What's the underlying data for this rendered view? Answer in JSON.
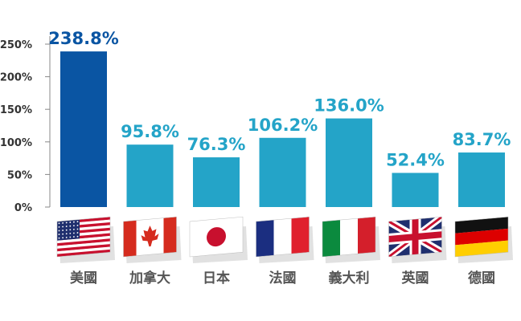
{
  "chart_data": {
    "type": "bar",
    "categories": [
      "美國",
      "加拿大",
      "日本",
      "法國",
      "義大利",
      "英國",
      "德國"
    ],
    "values": [
      238.8,
      95.8,
      76.3,
      106.2,
      136.0,
      52.4,
      83.7
    ],
    "value_labels": [
      "238.8%",
      "95.8%",
      "76.3%",
      "106.2%",
      "136.0%",
      "52.4%",
      "83.7%"
    ],
    "ylim": [
      0,
      250
    ],
    "yticks": [
      0,
      50,
      100,
      150,
      200,
      250
    ],
    "ytick_labels": [
      "0%",
      "50%",
      "100%",
      "150%",
      "200%",
      "250%"
    ],
    "grid": false,
    "flags": [
      "us-flag-icon",
      "canada-flag-icon",
      "japan-flag-icon",
      "france-flag-icon",
      "italy-flag-icon",
      "uk-flag-icon",
      "germany-flag-icon"
    ],
    "colors": {
      "highlight_bar": "#0a55a3",
      "highlight_label": "#0a55a3",
      "bar": "#24a4c8",
      "label": "#24a4c8",
      "axis": "#888888"
    }
  }
}
